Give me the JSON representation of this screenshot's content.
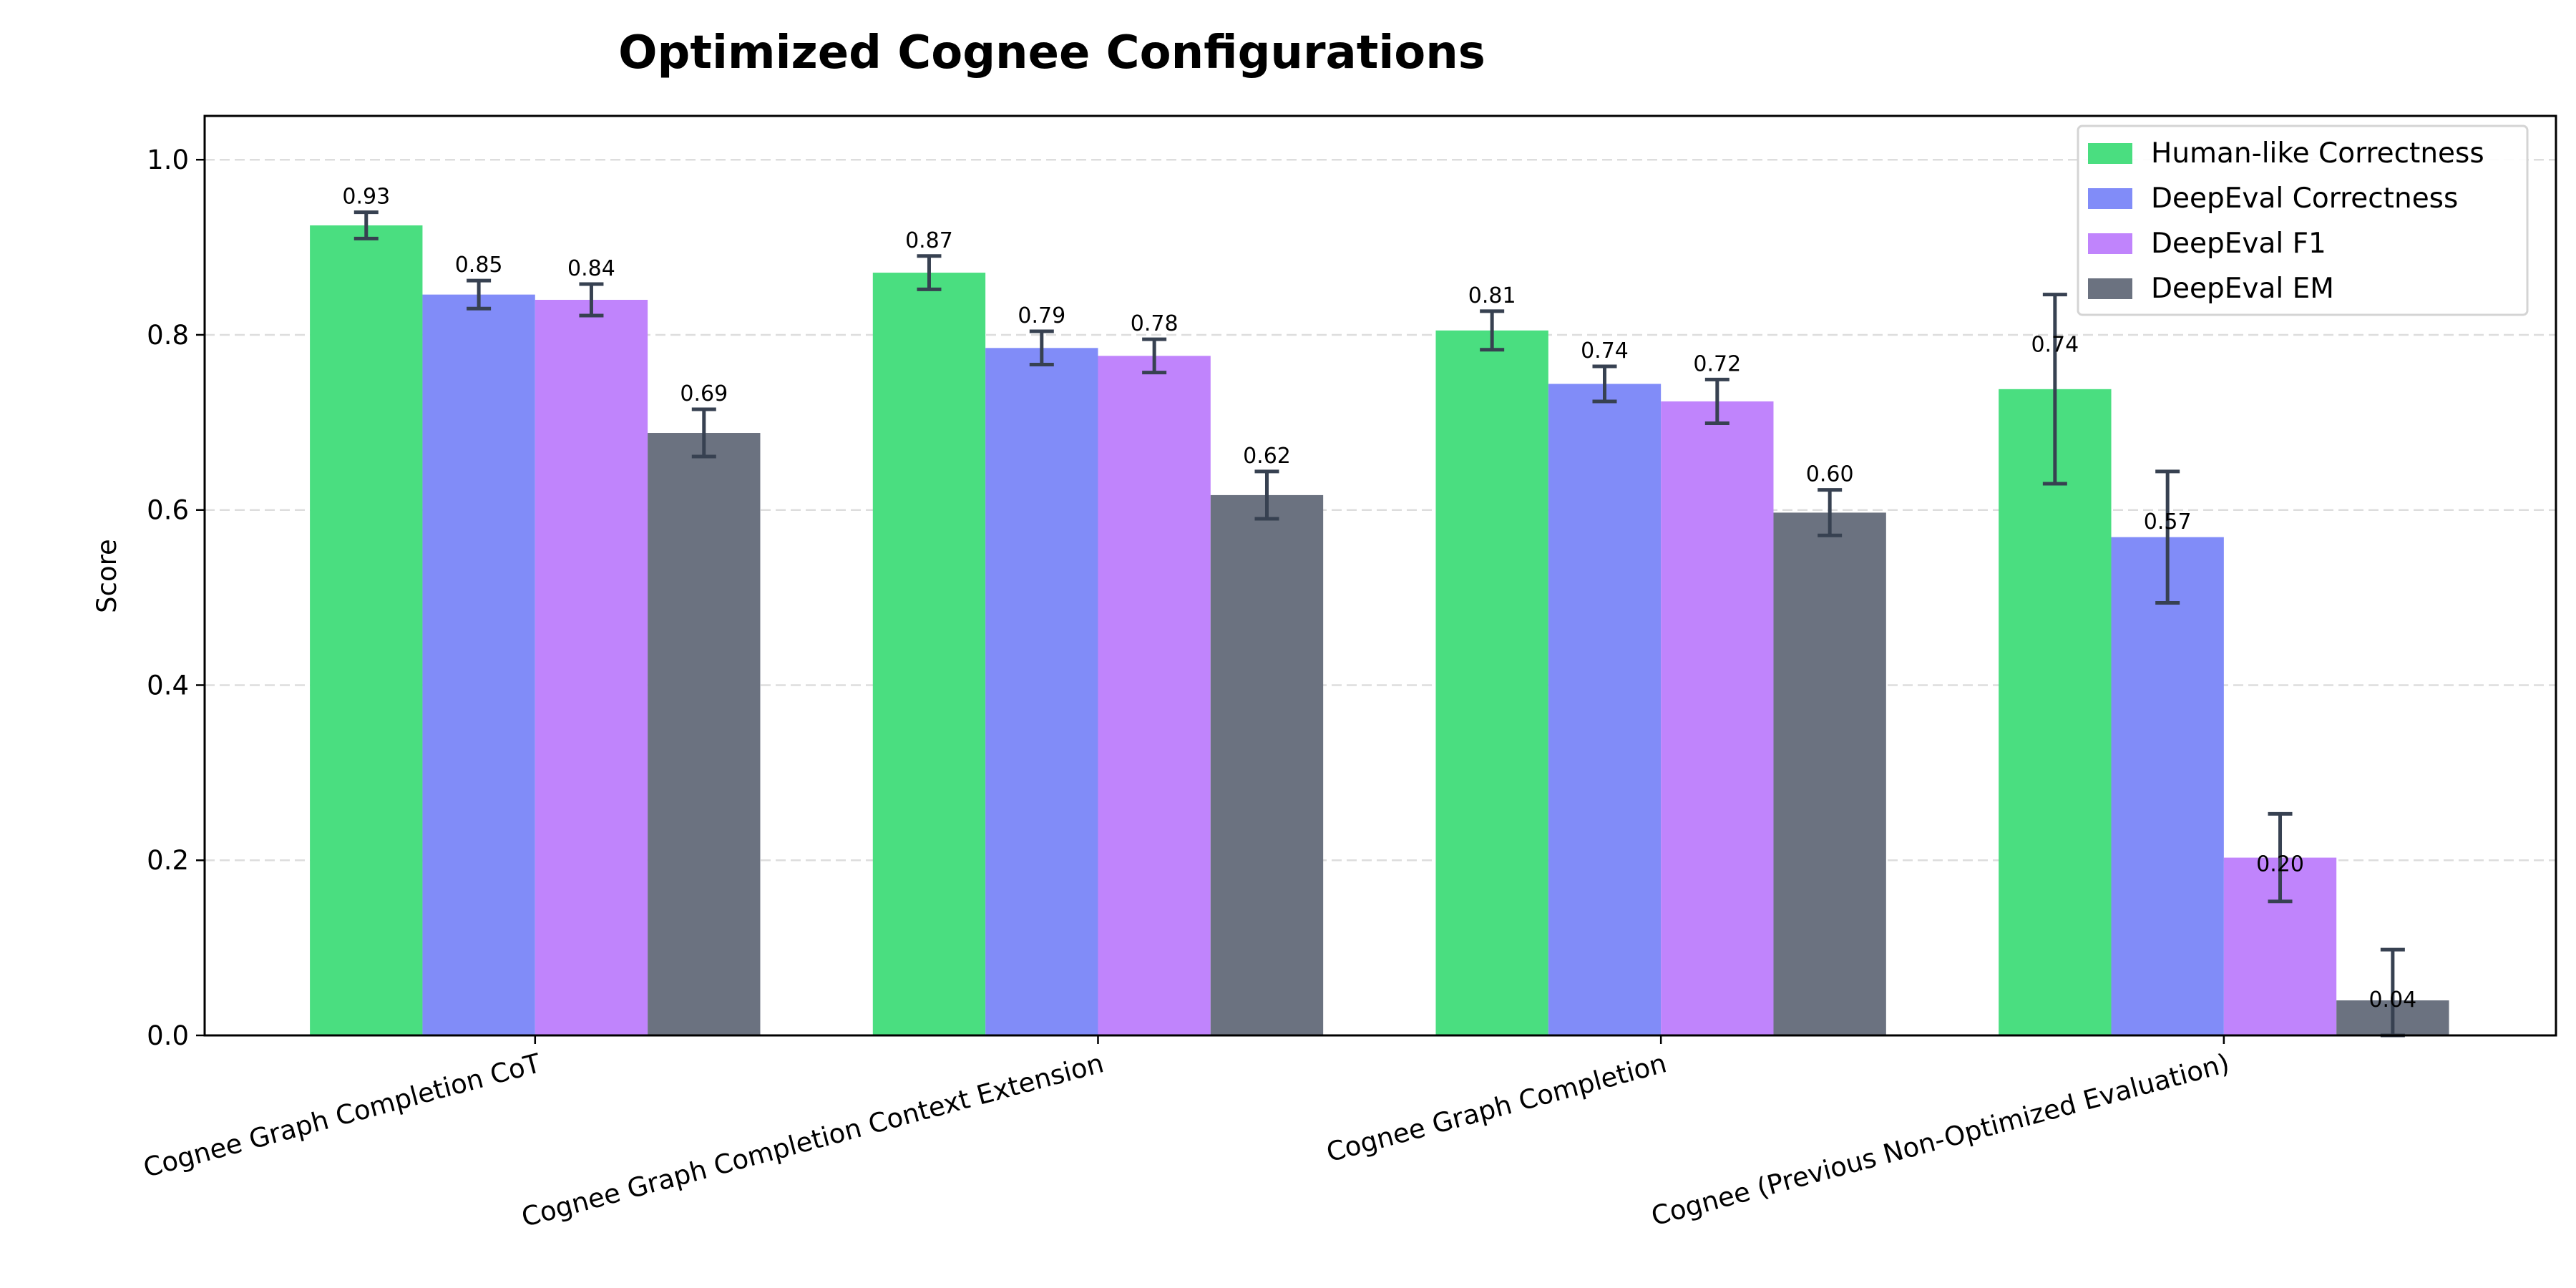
{
  "chart_data": {
    "type": "bar",
    "title": "Optimized Cognee Configurations",
    "xlabel": "",
    "ylabel": "Score",
    "ylim": [
      0,
      1.05
    ],
    "yticks": [
      "0.0",
      "0.2",
      "0.4",
      "0.6",
      "0.8",
      "1.0"
    ],
    "grid": "y dashed",
    "legend_position": "top-right",
    "categories": [
      "Cognee Graph Completion CoT",
      "Cognee Graph Completion Context Extension",
      "Cognee Graph Completion",
      "Cognee (Previous Non-Optimized Evaluation)"
    ],
    "series": [
      {
        "name": "Human-like Correctness",
        "color": "#4ade80",
        "values": [
          0.925,
          0.871,
          0.805,
          0.738
        ],
        "errors": [
          0.015,
          0.019,
          0.022,
          0.108
        ],
        "labels": [
          "0.93",
          "0.87",
          "0.81",
          "0.74"
        ]
      },
      {
        "name": "DeepEval Correctness",
        "color": "#818cf8",
        "values": [
          0.846,
          0.785,
          0.744,
          0.569
        ],
        "errors": [
          0.016,
          0.019,
          0.02,
          0.075
        ],
        "labels": [
          "0.85",
          "0.79",
          "0.74",
          "0.57"
        ]
      },
      {
        "name": "DeepEval F1",
        "color": "#c084fc",
        "values": [
          0.84,
          0.776,
          0.724,
          0.203
        ],
        "errors": [
          0.018,
          0.019,
          0.025,
          0.05
        ],
        "labels": [
          "0.84",
          "0.78",
          "0.72",
          "0.20"
        ]
      },
      {
        "name": "DeepEval EM",
        "color": "#6b7280",
        "values": [
          0.688,
          0.617,
          0.597,
          0.04
        ],
        "errors": [
          0.027,
          0.027,
          0.026,
          0.058
        ],
        "labels": [
          "0.69",
          "0.62",
          "0.60",
          "0.04"
        ]
      }
    ],
    "error_bar_color": "#374151"
  }
}
